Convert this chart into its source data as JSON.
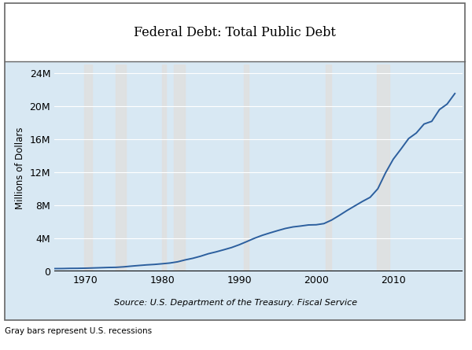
{
  "title": "Federal Debt: Total Public Debt",
  "ylabel": "Millions of Dollars",
  "source": "Source: U.S. Department of the Treasury. Fiscal Service",
  "footnote": "Gray bars represent U.S. recessions",
  "plot_bg_color": "#d8e8f3",
  "line_color": "#2c5f9e",
  "line_width": 1.4,
  "xlim": [
    1966,
    2019
  ],
  "ylim": [
    0,
    25000000
  ],
  "yticks": [
    0,
    4000000,
    8000000,
    12000000,
    16000000,
    20000000,
    24000000
  ],
  "ytick_labels": [
    "0",
    "4M",
    "8M",
    "12M",
    "16M",
    "20M",
    "24M"
  ],
  "xticks": [
    1970,
    1980,
    1990,
    2000,
    2010
  ],
  "recession_bands": [
    [
      1969.917,
      1970.917
    ],
    [
      1973.917,
      1975.25
    ],
    [
      1980.0,
      1980.5
    ],
    [
      1981.5,
      1982.917
    ],
    [
      1990.583,
      1991.25
    ],
    [
      2001.25,
      2001.917
    ],
    [
      2007.917,
      2009.5
    ]
  ],
  "data": {
    "years": [
      1966,
      1967,
      1968,
      1969,
      1970,
      1971,
      1972,
      1973,
      1974,
      1975,
      1976,
      1977,
      1978,
      1979,
      1980,
      1981,
      1982,
      1983,
      1984,
      1985,
      1986,
      1987,
      1988,
      1989,
      1990,
      1991,
      1992,
      1993,
      1994,
      1995,
      1996,
      1997,
      1998,
      1999,
      2000,
      2001,
      2002,
      2003,
      2004,
      2005,
      2006,
      2007,
      2008,
      2009,
      2010,
      2011,
      2012,
      2013,
      2014,
      2015,
      2016,
      2017,
      2018
    ],
    "values": [
      319907,
      326335,
      347578,
      353720,
      370918,
      398129,
      427260,
      458141,
      475059,
      533189,
      620433,
      698840,
      771544,
      826519,
      907701,
      994845,
      1142034,
      1377210,
      1572266,
      1823103,
      2120629,
      2345578,
      2601307,
      2867500,
      3206290,
      3598178,
      4001787,
      4351044,
      4643307,
      4920586,
      5181465,
      5369206,
      5478189,
      5605523,
      5628700,
      5769881,
      6198401,
      6760014,
      7354657,
      7905300,
      8451350,
      8950744,
      9986082,
      11909829,
      13561623,
      14790340,
      16066241,
      16738184,
      17824071,
      18150618,
      19573444,
      20244900,
      21516058
    ]
  }
}
